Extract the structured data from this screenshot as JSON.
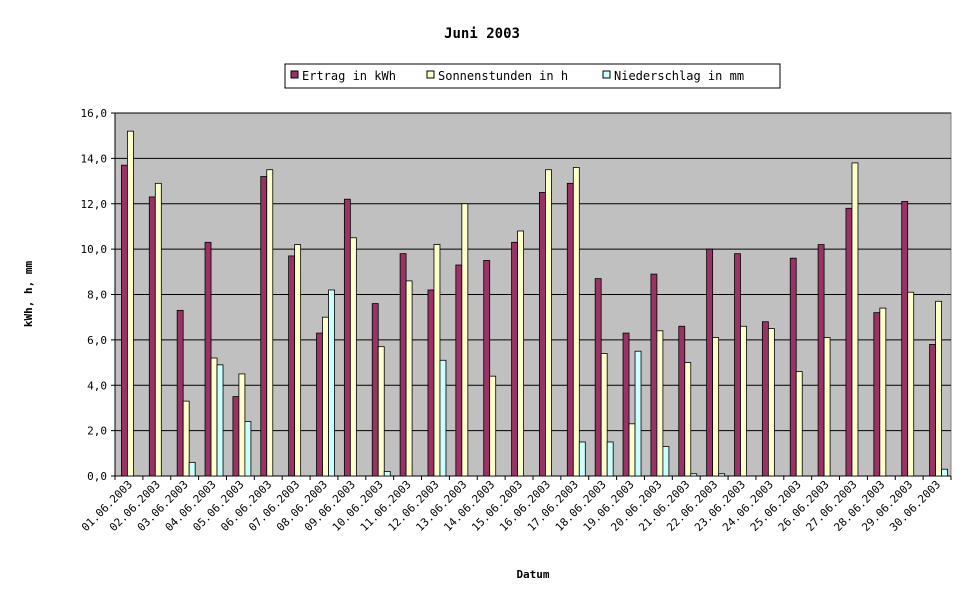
{
  "chart_data": {
    "type": "bar",
    "title": "Juni 2003",
    "xlabel": "Datum",
    "ylabel": "kWh, h, mm",
    "ylim": [
      0,
      16
    ],
    "yticks": [
      "0,0",
      "2,0",
      "4,0",
      "6,0",
      "8,0",
      "10,0",
      "12,0",
      "14,0",
      "16,0"
    ],
    "grid": true,
    "legend_position": "top",
    "plot_background": "#c0c0c0",
    "categories": [
      "01.06.2003",
      "02.06.2003",
      "03.06.2003",
      "04.06.2003",
      "05.06.2003",
      "06.06.2003",
      "07.06.2003",
      "08.06.2003",
      "09.06.2003",
      "10.06.2003",
      "11.06.2003",
      "12.06.2003",
      "13.06.2003",
      "14.06.2003",
      "15.06.2003",
      "16.06.2003",
      "17.06.2003",
      "18.06.2003",
      "19.06.2003",
      "20.06.2003",
      "21.06.2003",
      "22.06.2003",
      "23.06.2003",
      "24.06.2003",
      "25.06.2003",
      "26.06.2003",
      "27.06.2003",
      "28.06.2003",
      "29.06.2003",
      "30.06.2003"
    ],
    "series": [
      {
        "name": "Ertrag in kWh",
        "color": "#993366",
        "values": [
          13.7,
          12.3,
          7.3,
          10.3,
          3.5,
          13.2,
          9.7,
          6.3,
          12.2,
          7.6,
          9.8,
          8.2,
          9.3,
          9.5,
          10.3,
          12.5,
          12.9,
          8.7,
          6.3,
          8.9,
          6.6,
          10.0,
          9.8,
          6.8,
          9.6,
          10.2,
          11.8,
          7.2,
          12.1,
          5.8
        ]
      },
      {
        "name": "Sonnenstunden in h",
        "color": "#ffffcc",
        "values": [
          15.2,
          12.9,
          3.3,
          5.2,
          4.5,
          13.5,
          10.2,
          7.0,
          10.5,
          5.7,
          8.6,
          10.2,
          12.0,
          4.4,
          10.8,
          13.5,
          13.6,
          5.4,
          2.3,
          6.4,
          5.0,
          6.1,
          6.6,
          6.5,
          4.6,
          6.1,
          13.8,
          7.4,
          8.1,
          7.7
        ]
      },
      {
        "name": "Niederschlag in mm",
        "color": "#ccffff",
        "values": [
          0,
          0,
          0.6,
          4.9,
          2.4,
          0,
          0,
          8.2,
          0,
          0.2,
          0,
          5.1,
          0,
          0,
          0,
          0,
          1.5,
          1.5,
          5.5,
          1.3,
          0.1,
          0.1,
          0,
          0,
          0,
          0,
          0,
          0,
          0,
          0.3
        ]
      }
    ]
  }
}
